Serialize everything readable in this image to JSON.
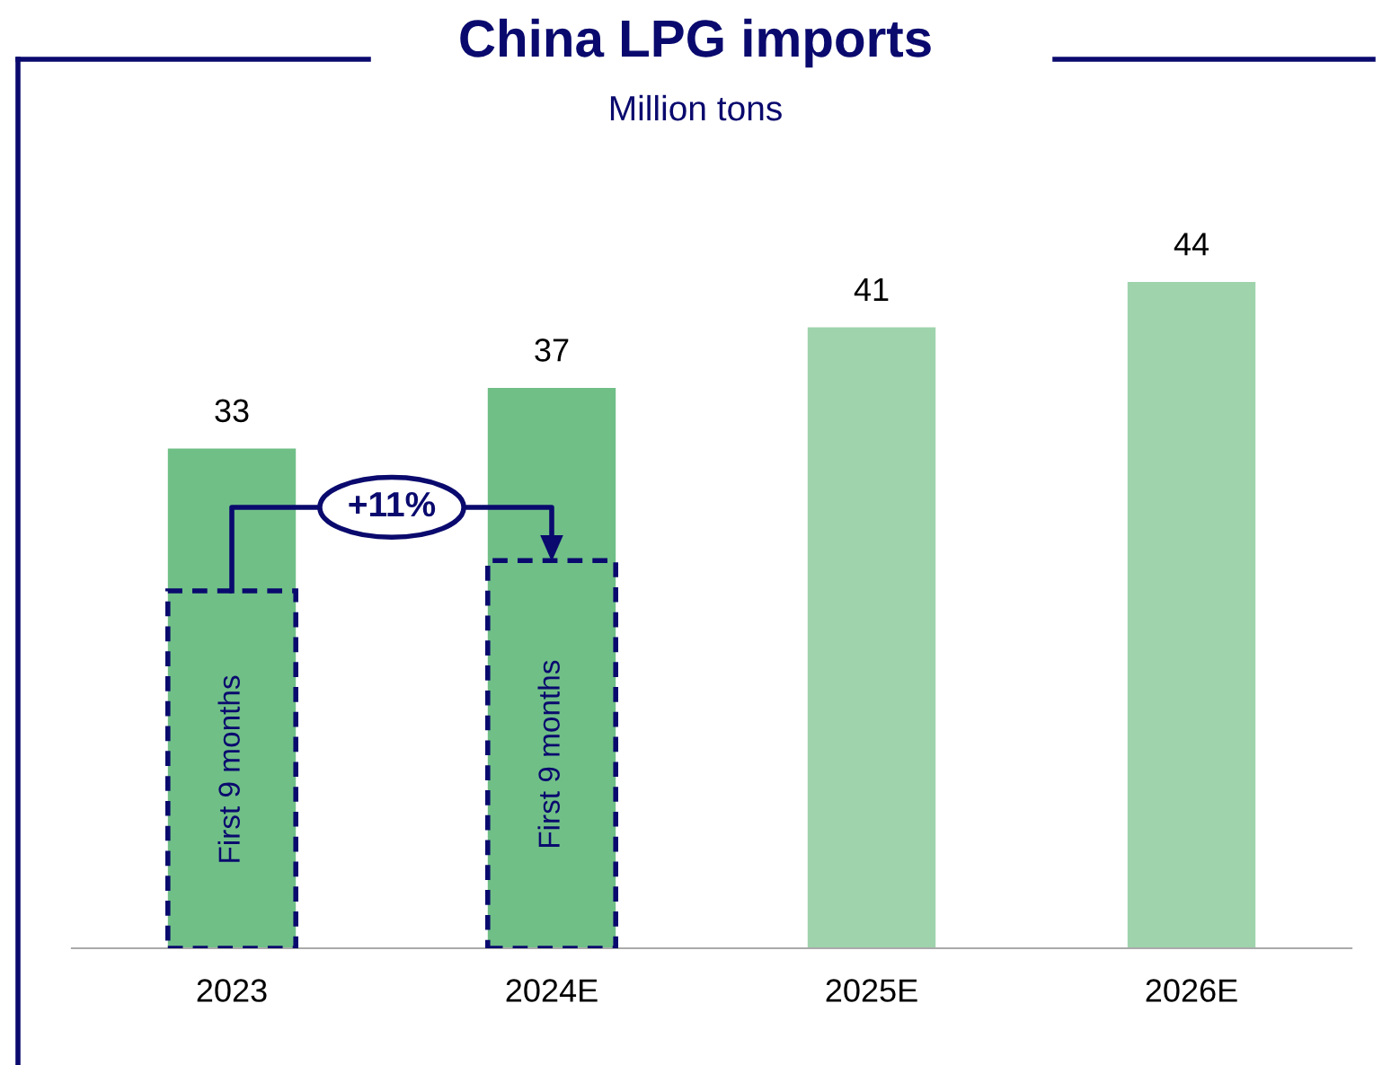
{
  "chart_data": {
    "type": "bar",
    "title": "China LPG imports",
    "subtitle": "Million tons",
    "categories": [
      "2023",
      "2024E",
      "2025E",
      "2026E"
    ],
    "series": [
      {
        "colors": [
          "#70bf87",
          "#70bf87",
          "#9fd3ac",
          "#9fd3ac"
        ],
        "values": [
          33,
          37,
          41,
          44
        ],
        "value_labels": [
          "33",
          "37",
          "41",
          "44"
        ]
      },
      {
        "name": "First 9 months",
        "color": "#0a0a6e",
        "line_style": "dashed",
        "values": [
          23.6,
          25.6,
          null,
          null
        ]
      }
    ],
    "annotations": [
      "+11%"
    ]
  }
}
